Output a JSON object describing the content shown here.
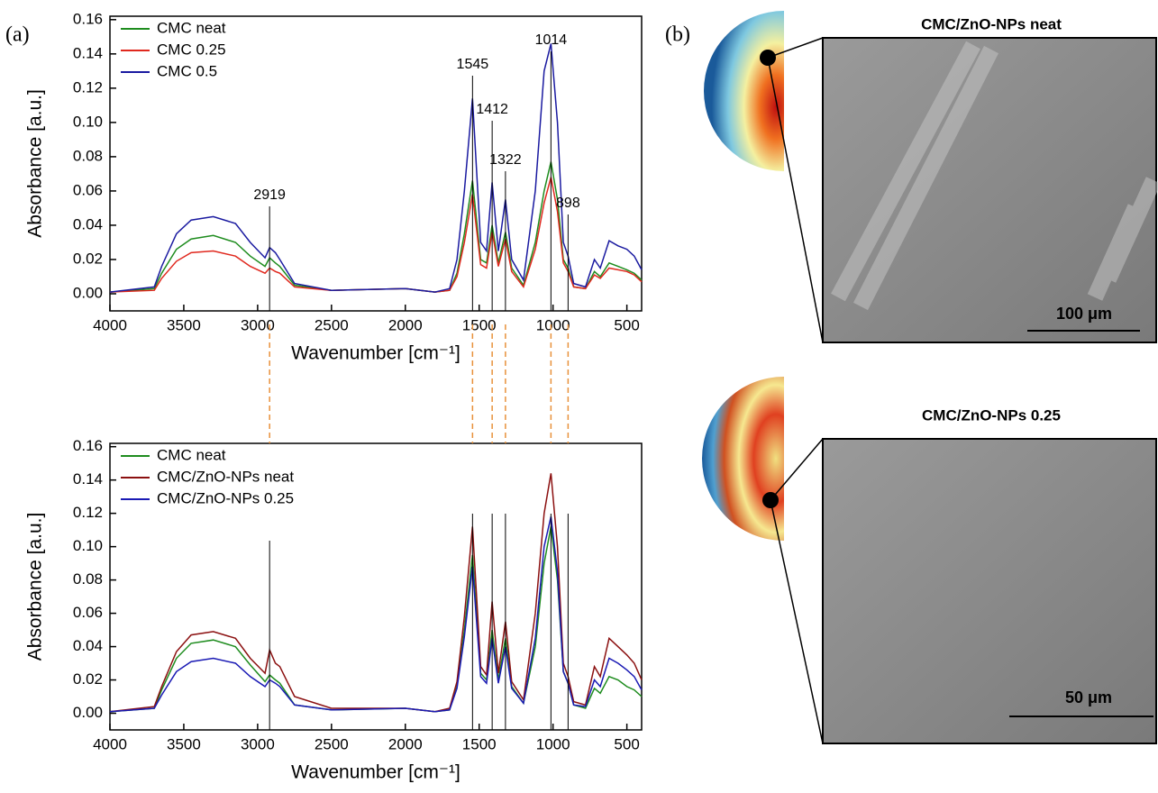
{
  "chart_data": [
    {
      "type": "line",
      "xlabel": "Wavenumber [cm⁻¹]",
      "ylabel": "Absorbance [a.u.]",
      "xlim": [
        4000,
        400
      ],
      "xticks": [
        4000,
        3500,
        3000,
        2500,
        2000,
        1500,
        1000,
        500
      ],
      "ylim": [
        -0.01,
        0.162
      ],
      "yticks": [
        {
          "value": 0,
          "label": "0.00"
        },
        {
          "value": 0.02,
          "label": "0.02"
        },
        {
          "value": 0.04,
          "label": "0.04"
        },
        {
          "value": 0.06,
          "label": "0.06"
        },
        {
          "value": 0.08,
          "label": "0.08"
        },
        {
          "value": 0.1,
          "label": "0.10"
        },
        {
          "value": 0.12,
          "label": "0.12"
        },
        {
          "value": 0.14,
          "label": "0.14"
        },
        {
          "value": 0.16,
          "label": "0.16"
        }
      ],
      "x": [
        4000,
        3700,
        3650,
        3550,
        3450,
        3300,
        3150,
        3050,
        2950,
        2919,
        2880,
        2850,
        2750,
        2500,
        2000,
        1800,
        1700,
        1650,
        1600,
        1545,
        1490,
        1450,
        1412,
        1370,
        1322,
        1280,
        1200,
        1120,
        1060,
        1014,
        970,
        930,
        898,
        860,
        780,
        720,
        680,
        620,
        560,
        500,
        450,
        400
      ],
      "series": [
        {
          "name": "CMC neat",
          "color": "#1e8c1e",
          "values": [
            0.001,
            0.003,
            0.012,
            0.026,
            0.032,
            0.034,
            0.03,
            0.022,
            0.016,
            0.021,
            0.018,
            0.016,
            0.005,
            0.002,
            0.003,
            0.001,
            0.002,
            0.012,
            0.035,
            0.066,
            0.02,
            0.018,
            0.04,
            0.018,
            0.036,
            0.015,
            0.005,
            0.03,
            0.06,
            0.077,
            0.055,
            0.02,
            0.015,
            0.004,
            0.003,
            0.013,
            0.01,
            0.018,
            0.016,
            0.014,
            0.012,
            0.008
          ]
        },
        {
          "name": "CMC 0.25",
          "color": "#e0281e",
          "values": [
            0.001,
            0.002,
            0.009,
            0.019,
            0.024,
            0.025,
            0.022,
            0.016,
            0.012,
            0.015,
            0.013,
            0.012,
            0.004,
            0.002,
            0.003,
            0.001,
            0.002,
            0.01,
            0.03,
            0.058,
            0.017,
            0.015,
            0.036,
            0.016,
            0.032,
            0.013,
            0.004,
            0.026,
            0.053,
            0.068,
            0.048,
            0.018,
            0.013,
            0.004,
            0.003,
            0.011,
            0.009,
            0.015,
            0.014,
            0.013,
            0.011,
            0.007
          ]
        },
        {
          "name": "CMC 0.5",
          "color": "#1a1aa0",
          "values": [
            0.001,
            0.004,
            0.016,
            0.035,
            0.043,
            0.045,
            0.041,
            0.03,
            0.021,
            0.027,
            0.024,
            0.02,
            0.006,
            0.002,
            0.003,
            0.001,
            0.003,
            0.02,
            0.06,
            0.114,
            0.03,
            0.025,
            0.065,
            0.025,
            0.055,
            0.02,
            0.008,
            0.06,
            0.13,
            0.146,
            0.1,
            0.03,
            0.022,
            0.006,
            0.004,
            0.02,
            0.015,
            0.031,
            0.028,
            0.026,
            0.022,
            0.014
          ]
        }
      ],
      "peak_labels": [
        2919,
        1545,
        1412,
        1322,
        1014,
        898
      ]
    },
    {
      "type": "line",
      "xlabel": "Wavenumber [cm⁻¹]",
      "ylabel": "Absorbance [a.u.]",
      "xlim": [
        4000,
        400
      ],
      "xticks": [
        4000,
        3500,
        3000,
        2500,
        2000,
        1500,
        1000,
        500
      ],
      "ylim": [
        -0.01,
        0.162
      ],
      "yticks": [
        {
          "value": 0,
          "label": "0.00"
        },
        {
          "value": 0.02,
          "label": "0.02"
        },
        {
          "value": 0.04,
          "label": "0.04"
        },
        {
          "value": 0.06,
          "label": "0.06"
        },
        {
          "value": 0.08,
          "label": "0.08"
        },
        {
          "value": 0.1,
          "label": "0.10"
        },
        {
          "value": 0.12,
          "label": "0.12"
        },
        {
          "value": 0.14,
          "label": "0.14"
        },
        {
          "value": 0.16,
          "label": "0.16"
        }
      ],
      "x": [
        4000,
        3700,
        3650,
        3550,
        3450,
        3300,
        3150,
        3050,
        2950,
        2919,
        2880,
        2850,
        2750,
        2500,
        2000,
        1800,
        1700,
        1650,
        1600,
        1545,
        1490,
        1450,
        1412,
        1370,
        1322,
        1280,
        1200,
        1120,
        1060,
        1014,
        970,
        930,
        898,
        860,
        780,
        720,
        680,
        620,
        560,
        500,
        450,
        400
      ],
      "series": [
        {
          "name": "CMC neat",
          "color": "#1e8c1e",
          "values": [
            0.001,
            0.003,
            0.014,
            0.033,
            0.042,
            0.044,
            0.04,
            0.029,
            0.019,
            0.023,
            0.02,
            0.018,
            0.005,
            0.002,
            0.003,
            0.001,
            0.002,
            0.016,
            0.05,
            0.095,
            0.024,
            0.02,
            0.05,
            0.02,
            0.045,
            0.016,
            0.006,
            0.04,
            0.09,
            0.112,
            0.08,
            0.025,
            0.018,
            0.005,
            0.003,
            0.015,
            0.012,
            0.022,
            0.02,
            0.016,
            0.014,
            0.01
          ]
        },
        {
          "name": "CMC/ZnO-NPs neat",
          "color": "#8b1010",
          "values": [
            0.001,
            0.004,
            0.016,
            0.037,
            0.047,
            0.049,
            0.045,
            0.033,
            0.024,
            0.038,
            0.03,
            0.028,
            0.01,
            0.003,
            0.003,
            0.001,
            0.003,
            0.019,
            0.058,
            0.112,
            0.028,
            0.023,
            0.067,
            0.024,
            0.055,
            0.019,
            0.008,
            0.06,
            0.12,
            0.144,
            0.1,
            0.03,
            0.022,
            0.007,
            0.005,
            0.028,
            0.022,
            0.045,
            0.04,
            0.035,
            0.03,
            0.02
          ]
        },
        {
          "name": "CMC/ZnO-NPs 0.25",
          "color": "#1a1ab4",
          "values": [
            0.001,
            0.003,
            0.011,
            0.025,
            0.031,
            0.033,
            0.03,
            0.022,
            0.016,
            0.02,
            0.018,
            0.016,
            0.005,
            0.002,
            0.003,
            0.001,
            0.002,
            0.015,
            0.046,
            0.088,
            0.022,
            0.018,
            0.045,
            0.018,
            0.04,
            0.015,
            0.006,
            0.045,
            0.1,
            0.118,
            0.085,
            0.025,
            0.018,
            0.005,
            0.004,
            0.02,
            0.016,
            0.033,
            0.03,
            0.026,
            0.022,
            0.014
          ]
        }
      ]
    }
  ],
  "figure": {
    "panel_labels": [
      "(a)",
      "(b)"
    ],
    "images": [
      {
        "title": "CMC/ZnO-NPs neat",
        "scale_bar": "100 μm"
      },
      {
        "title": "CMC/ZnO-NPs 0.25",
        "scale_bar": "50 μm"
      }
    ]
  }
}
